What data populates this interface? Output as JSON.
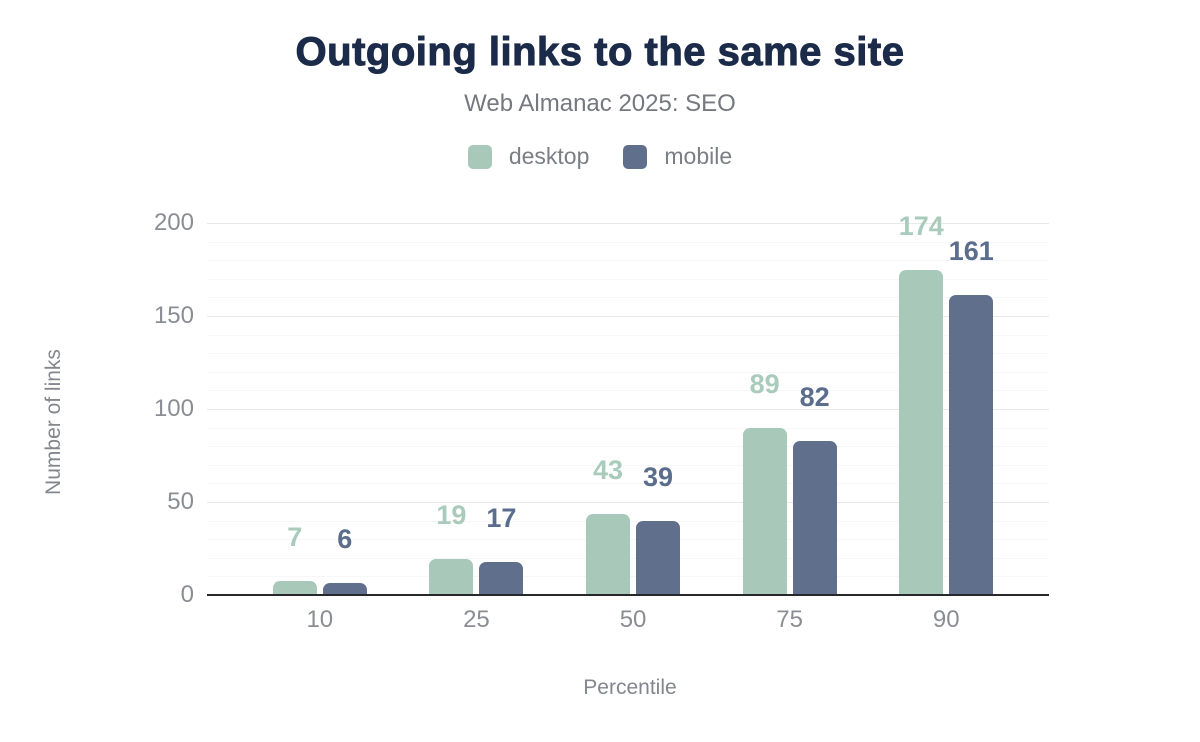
{
  "title": "Outgoing links to the same site",
  "subtitle": "Web Almanac 2025: SEO",
  "legend": {
    "items": [
      {
        "label": "desktop",
        "color": "#a8c9ba"
      },
      {
        "label": "mobile",
        "color": "#60708c"
      }
    ]
  },
  "chart_data": {
    "type": "bar",
    "title": "Outgoing links to the same site",
    "subtitle": "Web Almanac 2025: SEO",
    "xlabel": "Percentile",
    "ylabel": "Number of links",
    "categories": [
      "10",
      "25",
      "50",
      "75",
      "90"
    ],
    "series": [
      {
        "name": "desktop",
        "color": "#a8c9ba",
        "label_color": "#a9cbbb",
        "values": [
          7,
          19,
          43,
          89,
          174
        ]
      },
      {
        "name": "mobile",
        "color": "#60708c",
        "label_color": "#5a6d8c",
        "values": [
          6,
          17,
          39,
          82,
          161
        ]
      }
    ],
    "ylim": [
      0,
      200
    ],
    "y_ticks": [
      0,
      50,
      100,
      150,
      200
    ],
    "grid": {
      "major_step": 50,
      "minor_step": 10,
      "show": true
    },
    "legend_position": "top"
  },
  "colors": {
    "title": "#1b2b49",
    "subtitle": "#75787e",
    "axis_text": "#8a8e94",
    "axis_title": "#83878d",
    "grid_major": "#e8e9eb",
    "grid_minor": "#f6f7f8",
    "axis_line": "#26282b",
    "background": "#ffffff"
  }
}
